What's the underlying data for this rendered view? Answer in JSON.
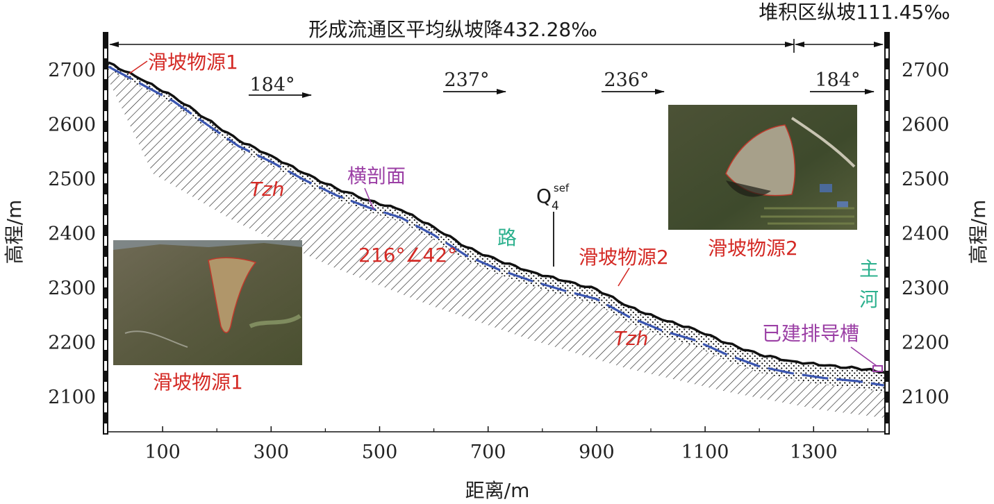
{
  "labels": {
    "top_main": "形成流通区平均纵坡降432.28‰",
    "top_right": "堆积区纵坡111.45‰",
    "x_axis": "距离/m",
    "y_axis_left": "高程/m",
    "y_axis_right": "高程/m",
    "source1": "滑坡物源1",
    "source1_photo": "滑坡物源1",
    "source2": "滑坡物源2",
    "source2_photo": "滑坡物源2",
    "cross_section": "横剖面",
    "rock1": "Tzh",
    "rock2": "Tzh",
    "attitude": "216°∠42°",
    "road": "路",
    "main_river_1": "主",
    "main_river_2": "河",
    "drainage": "已建排导槽",
    "q4": "Q",
    "q4_sub": "4",
    "q4_sup": "sef",
    "dir1": "184°",
    "dir2": "237°",
    "dir3": "236°",
    "dir4": "184°"
  },
  "axes": {
    "x_ticks": [
      "100",
      "300",
      "500",
      "700",
      "900",
      "1100",
      "1300"
    ],
    "y_ticks": [
      "2700",
      "2600",
      "2500",
      "2400",
      "2300",
      "2200",
      "2100"
    ]
  },
  "chart_data": {
    "type": "line",
    "xlabel": "距离/m",
    "ylabel": "高程/m",
    "xlim": [
      0,
      1430
    ],
    "ylim": [
      2040,
      2760
    ],
    "series": [
      {
        "x": [
          0,
          60,
          120,
          180,
          240,
          300,
          360,
          420,
          480,
          540,
          600,
          660,
          720,
          780,
          840,
          900,
          960,
          1020,
          1080,
          1140,
          1200,
          1260,
          1320,
          1380,
          1430
        ],
        "y": [
          2714,
          2683,
          2652,
          2611,
          2571,
          2543,
          2511,
          2483,
          2461,
          2443,
          2412,
          2375,
          2350,
          2330,
          2313,
          2298,
          2266,
          2242,
          2225,
          2199,
          2178,
          2166,
          2158,
          2153,
          2146
        ]
      }
    ]
  },
  "colors": {
    "slope_line": "#1a1a1a",
    "sliding_surface": "#3a55b0",
    "source_label": "#d42a25",
    "section_label": "#9b3fa5",
    "road_label": "#2bb08d"
  }
}
